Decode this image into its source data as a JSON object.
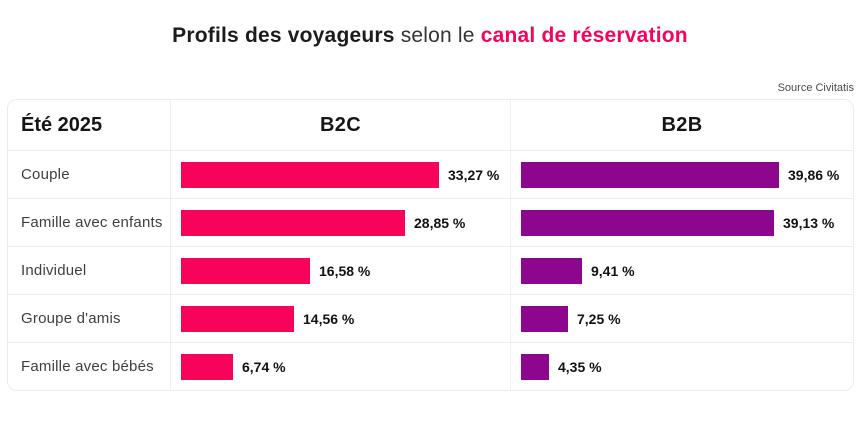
{
  "title": {
    "bold_dark": "Profils des voyageurs",
    "regular": "selon le",
    "bold_pink": "canal de réservation"
  },
  "source_label": "Source Civitatis",
  "table_header": {
    "period": "Été 2025",
    "b2c": "B2C",
    "b2b": "B2B"
  },
  "chart_data": {
    "type": "bar",
    "orientation": "horizontal",
    "title": "Profils des voyageurs selon le canal de réservation",
    "categories": [
      "Couple",
      "Famille avec enfants",
      "Individuel",
      "Groupe d'amis",
      "Famille avec bébés"
    ],
    "series": [
      {
        "name": "B2C",
        "color": "#f9035a",
        "values": [
          33.27,
          28.85,
          16.58,
          14.56,
          6.74
        ],
        "labels": [
          "33,27 %",
          "28,85 %",
          "16,58 %",
          "14,56 %",
          "6,74 %"
        ]
      },
      {
        "name": "B2B",
        "color": "#8d068e",
        "values": [
          39.86,
          39.13,
          9.41,
          7.25,
          4.35
        ],
        "labels": [
          "39,86 %",
          "39,13 %",
          "9,41 %",
          "7,25 %",
          "4,35 %"
        ]
      }
    ],
    "value_unit": "%",
    "xlim": [
      0,
      40
    ],
    "grid": false,
    "legend": false
  },
  "colors": {
    "b2c_bar": "#f9035a",
    "b2b_bar": "#8d068e",
    "title_accent": "#f5045c",
    "table_border": "#ececec",
    "row_label_text": "#3f3f3f",
    "value_text": "#121212"
  }
}
